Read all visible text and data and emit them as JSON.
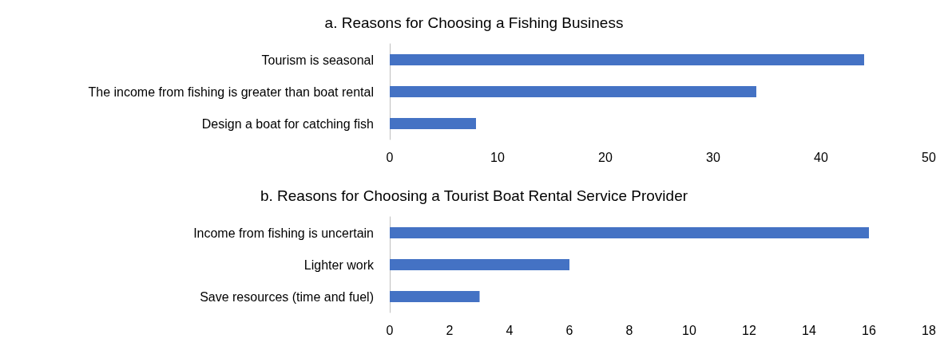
{
  "chart_data": [
    {
      "type": "bar",
      "orientation": "horizontal",
      "title": "a. Reasons for Choosing a Fishing Business",
      "categories": [
        "Tourism is seasonal",
        "The income from fishing is greater than boat rental",
        "Design a boat for catching fish"
      ],
      "values": [
        44,
        34,
        8
      ],
      "color": "#4472c4",
      "xlim": [
        0,
        50
      ],
      "xticks": [
        0,
        10,
        20,
        30,
        40,
        50
      ],
      "grid": false
    },
    {
      "type": "bar",
      "orientation": "horizontal",
      "title": "b. Reasons for Choosing a Tourist Boat Rental Service Provider",
      "categories": [
        "Income from fishing is uncertain",
        "Lighter work",
        "Save resources (time and fuel)"
      ],
      "values": [
        16,
        6,
        3
      ],
      "color": "#4472c4",
      "xlim": [
        0,
        18
      ],
      "xticks": [
        0,
        2,
        4,
        6,
        8,
        10,
        12,
        14,
        16,
        18
      ],
      "grid": false
    }
  ]
}
